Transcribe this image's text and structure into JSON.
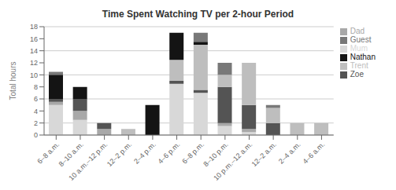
{
  "chart_data": {
    "type": "bar",
    "title": "Time Spent Watching TV per 2-hour Period",
    "ylabel": "Total hours",
    "categories": [
      "6–8 a.m.",
      "8–10 a.m.",
      "10 a.m.–12 p.m.",
      "12–2 p.m.",
      "2–4 p.m.",
      "4–6 p.m.",
      "6–8 p.m.",
      "8–10 p.m.",
      "10 p.m.–12 a.m.",
      "12–2 a.m.",
      "2–4 a.m.",
      "4–6 a.m."
    ],
    "series": [
      {
        "name": "Mum",
        "color": "#d8d8d8",
        "values": [
          5.0,
          2.5,
          0,
          0,
          0,
          8.5,
          7.0,
          1.5,
          0.5,
          0,
          0,
          0
        ]
      },
      {
        "name": "Dad",
        "color": "#a8a8a8",
        "values": [
          0.5,
          1.5,
          1.0,
          0,
          0,
          0,
          0,
          0.5,
          0.5,
          0,
          0,
          0
        ]
      },
      {
        "name": "Zoe",
        "color": "#545454",
        "values": [
          0.5,
          2.0,
          1.0,
          0,
          0,
          0.5,
          0.5,
          6.0,
          4.0,
          2.0,
          0,
          0
        ]
      },
      {
        "name": "Trent",
        "color": "#bebebe",
        "values": [
          0,
          0,
          0,
          1.0,
          0,
          3.5,
          7.5,
          2.0,
          7.0,
          2.5,
          2.0,
          2.0
        ]
      },
      {
        "name": "Nathan",
        "color": "#141414",
        "values": [
          4.0,
          2.0,
          0,
          0,
          5.0,
          4.5,
          0.5,
          0,
          0,
          0,
          0,
          0
        ]
      },
      {
        "name": "Guest",
        "color": "#787878",
        "values": [
          0.5,
          0,
          0,
          0,
          0,
          0,
          1.5,
          2.0,
          0,
          0.5,
          0,
          0
        ]
      }
    ],
    "ylim": [
      0,
      18
    ],
    "yticks": [
      0,
      2,
      4,
      6,
      8,
      10,
      12,
      14,
      16,
      18
    ],
    "stacked": true,
    "grid": true,
    "legend": "upper right"
  }
}
